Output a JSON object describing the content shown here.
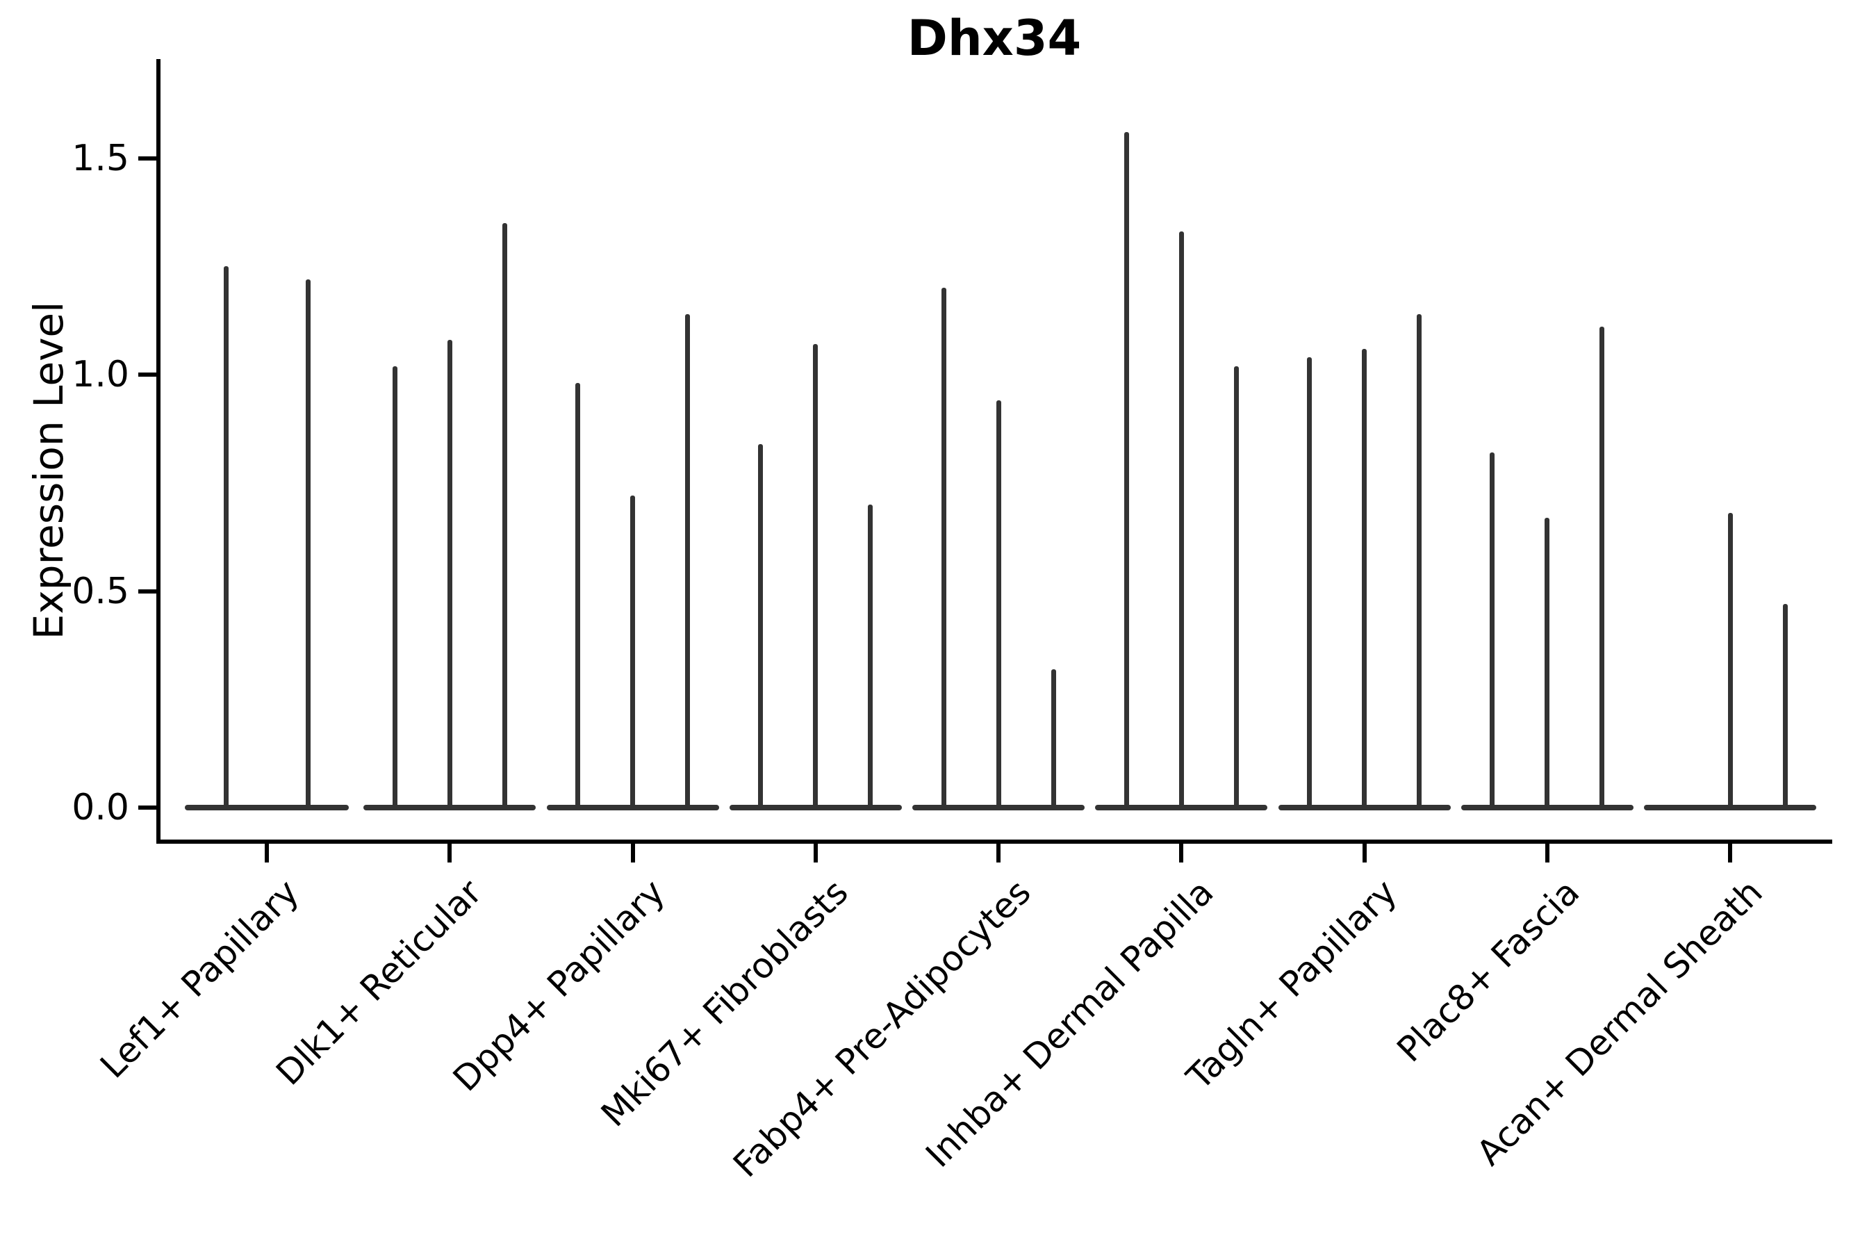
{
  "title": "Dhx34",
  "chart_data": {
    "type": "violin",
    "title": "Dhx34",
    "xlabel": "",
    "ylabel": "Expression Level",
    "y_tick_labels": [
      "0.0",
      "0.5",
      "1.0",
      "1.5"
    ],
    "y_tick_values": [
      0.0,
      0.5,
      1.0,
      1.5
    ],
    "ylim": [
      -0.08,
      1.73
    ],
    "grid": false,
    "legend_position": "none",
    "x_tick_rotation_degrees": 45,
    "categories": [
      "Lef1+ Papillary",
      "Dlk1+ Reticular",
      "Dpp4+ Papillary",
      "Mki67+ Fibroblasts",
      "Fabp4+ Pre-Adipocytes",
      "Inhba+ Dermal Papilla",
      "Tagln+ Papillary",
      "Plac8+ Fascia",
      "Acan+ Dermal Sheath"
    ],
    "groups": [
      {
        "category": "Lef1+ Papillary",
        "violin_maxima": [
          1.25,
          1.22
        ]
      },
      {
        "category": "Dlk1+ Reticular",
        "violin_maxima": [
          1.02,
          1.08,
          1.35
        ]
      },
      {
        "category": "Dpp4+ Papillary",
        "violin_maxima": [
          0.98,
          0.72,
          1.14
        ]
      },
      {
        "category": "Mki67+ Fibroblasts",
        "violin_maxima": [
          0.84,
          1.07,
          0.7
        ]
      },
      {
        "category": "Fabp4+ Pre-Adipocytes",
        "violin_maxima": [
          1.2,
          0.94,
          0.32
        ]
      },
      {
        "category": "Inhba+ Dermal Papilla",
        "violin_maxima": [
          1.56,
          1.33,
          1.02
        ]
      },
      {
        "category": "Tagln+ Papillary",
        "violin_maxima": [
          1.04,
          1.06,
          1.14
        ]
      },
      {
        "category": "Plac8+ Fascia",
        "violin_maxima": [
          0.82,
          0.67,
          1.11
        ]
      },
      {
        "category": "Acan+ Dermal Sheath",
        "violin_maxima": [
          0.0,
          0.68,
          0.47
        ]
      }
    ],
    "colors": {
      "violin": "#333333",
      "axis": "#000000",
      "text": "#000000",
      "background": "#ffffff"
    }
  }
}
